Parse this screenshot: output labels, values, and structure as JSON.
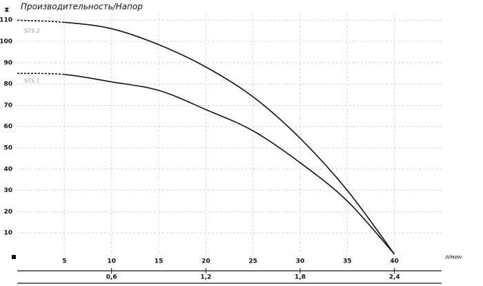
{
  "chart_data": {
    "type": "line",
    "title": "Производительность/Напор",
    "y_label": "м",
    "x_label": "л/мин",
    "x": [
      0,
      5,
      10,
      15,
      20,
      25,
      30,
      35,
      40
    ],
    "series": [
      {
        "name": "STS 2",
        "color": "#111111",
        "values": [
          110,
          109,
          106,
          98.5,
          88,
          74,
          54.5,
          30,
          0
        ]
      },
      {
        "name": "STS 1",
        "color": "#111111",
        "values": [
          85,
          84.5,
          81,
          77,
          68,
          58,
          43,
          25,
          0
        ]
      }
    ],
    "dashed_x_max": 5,
    "xlim": [
      0,
      45
    ],
    "xticks": [
      5,
      10,
      15,
      20,
      25,
      30,
      35,
      40
    ],
    "ylim": [
      0,
      113
    ],
    "yticks": [
      10,
      20,
      30,
      40,
      50,
      60,
      70,
      80,
      90,
      100,
      110
    ],
    "x2ticks": [
      {
        "value": 10,
        "label": "0,6"
      },
      {
        "value": 20,
        "label": "1,2"
      },
      {
        "value": 30,
        "label": "1,8"
      },
      {
        "value": 40,
        "label": "2,4"
      }
    ],
    "grid": true
  }
}
